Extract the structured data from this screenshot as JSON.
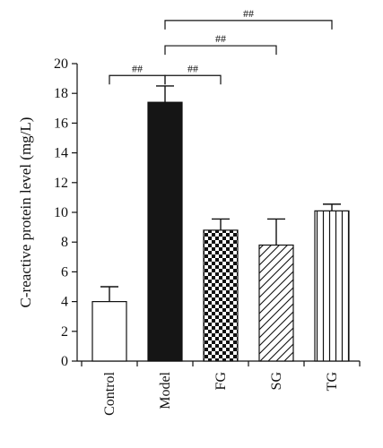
{
  "chart_data": {
    "type": "bar",
    "title": "",
    "xlabel": "",
    "ylabel": "C-reactive protein level (mg/L)",
    "ylim": [
      0,
      20
    ],
    "yticks": [
      0,
      2,
      4,
      6,
      8,
      10,
      12,
      14,
      16,
      18,
      20
    ],
    "grid": false,
    "categories": [
      "Control",
      "Model",
      "FG",
      "SG",
      "TG"
    ],
    "values": [
      4.0,
      17.4,
      8.8,
      7.8,
      10.1
    ],
    "errors": [
      1.0,
      1.1,
      0.75,
      1.75,
      0.45
    ],
    "fills": [
      "white",
      "solid-black",
      "checkerboard",
      "diagonal-hatch",
      "vertical-lines"
    ],
    "significance": [
      {
        "from": "Control",
        "to": "Model",
        "label": "##",
        "y": 19.2
      },
      {
        "from": "Model",
        "to": "FG",
        "label": "##",
        "y": 19.2
      },
      {
        "from": "Model",
        "to": "SG",
        "label": "##",
        "y": 21.2
      },
      {
        "from": "Model",
        "to": "TG",
        "label": "##",
        "y": 22.9
      }
    ]
  }
}
